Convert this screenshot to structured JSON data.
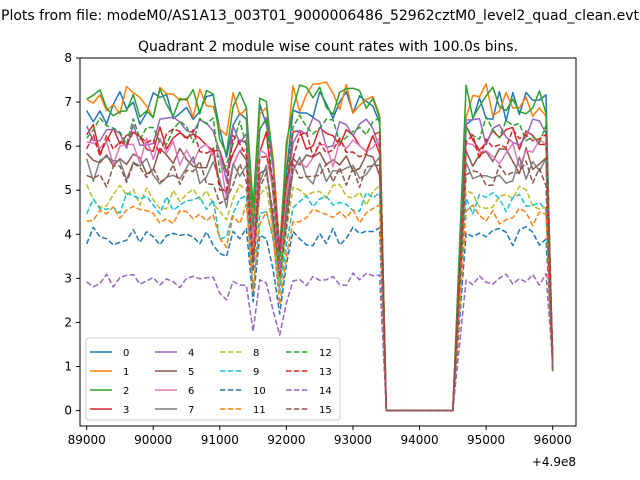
{
  "suptitle": "Plots from file: modeM0/AS1A13_003T01_9000006486_52962cztM0_level2_quad_clean.evt",
  "title": "Quadrant 2 module wise count rates with 100.0s bins.",
  "axis_offset_label": "+4.9e8",
  "chart_data": {
    "type": "line",
    "title": "Quadrant 2 module wise count rates with 100.0s bins.",
    "xlabel": "",
    "ylabel": "",
    "x_offset": 490000000,
    "xlim": [
      88900,
      96350
    ],
    "ylim": [
      -0.35,
      8.0
    ],
    "xticks": [
      89000,
      90000,
      91000,
      92000,
      93000,
      94000,
      95000,
      96000
    ],
    "yticks": [
      0,
      1,
      2,
      3,
      4,
      5,
      6,
      7,
      8
    ],
    "grid": false,
    "legend_position": "lower-left",
    "bin_seconds": 100,
    "segments": [
      {
        "x_start": 89000,
        "x_end": 93400,
        "step": 100
      },
      {
        "x_start": 93500,
        "x_end": 94500,
        "step": 100
      },
      {
        "x_start": 94700,
        "x_end": 96000,
        "step": 100
      }
    ],
    "series": [
      {
        "name": "0",
        "color": "#1f77b4",
        "dash": "solid",
        "level": 6.85
      },
      {
        "name": "1",
        "color": "#ff7f0e",
        "dash": "solid",
        "level": 7.05
      },
      {
        "name": "2",
        "color": "#2ca02c",
        "dash": "solid",
        "level": 7.0
      },
      {
        "name": "3",
        "color": "#d62728",
        "dash": "solid",
        "level": 6.15
      },
      {
        "name": "4",
        "color": "#9467bd",
        "dash": "solid",
        "level": 6.3
      },
      {
        "name": "5",
        "color": "#8c564b",
        "dash": "solid",
        "level": 5.65
      },
      {
        "name": "6",
        "color": "#e377c2",
        "dash": "solid",
        "level": 5.85
      },
      {
        "name": "7",
        "color": "#7f7f7f",
        "dash": "solid",
        "level": 5.45
      },
      {
        "name": "8",
        "color": "#bcbd22",
        "dash": "dashed",
        "level": 4.85
      },
      {
        "name": "9",
        "color": "#17becf",
        "dash": "dashed",
        "level": 4.7
      },
      {
        "name": "10",
        "color": "#1f77b4",
        "dash": "dashed",
        "level": 3.95
      },
      {
        "name": "11",
        "color": "#ff7f0e",
        "dash": "dashed",
        "level": 4.45
      },
      {
        "name": "12",
        "color": "#2ca02c",
        "dash": "dashed",
        "level": 6.35
      },
      {
        "name": "13",
        "color": "#d62728",
        "dash": "dashed",
        "level": 6.05
      },
      {
        "name": "14",
        "color": "#9467bd",
        "dash": "dashed",
        "level": 2.95
      },
      {
        "name": "15",
        "color": "#8c564b",
        "dash": "dashed",
        "level": 5.35
      }
    ],
    "dip_points": [
      {
        "x": 91500,
        "factor": 0.62
      },
      {
        "x": 91900,
        "factor": 0.55
      },
      {
        "x": 91800,
        "factor": 0.82
      },
      {
        "x": 92000,
        "factor": 0.82
      },
      {
        "x": 91000,
        "factor": 0.9
      },
      {
        "x": 91100,
        "factor": 0.85
      }
    ]
  }
}
